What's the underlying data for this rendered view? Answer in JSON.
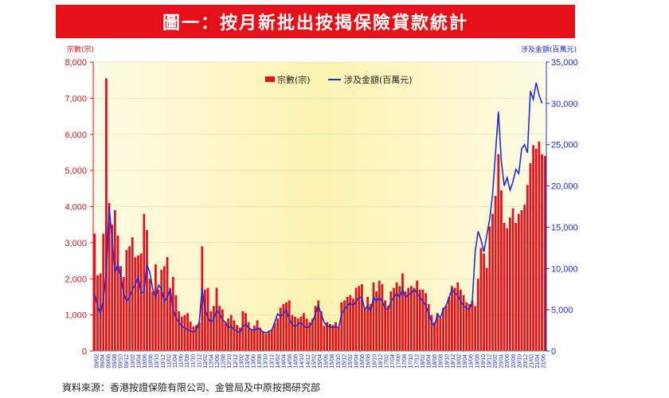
{
  "title": "圖一：按月新批出按揭保險貸款統計",
  "source": "資料來源：香港按證保險有限公司、金管局及中原按揭研究部",
  "colors": {
    "bar": "#e4111a",
    "line": "#1e2ed2",
    "title_bg": "#e4111a",
    "bg_center": "#fbf5b8"
  },
  "chart_data": {
    "type": "bar",
    "left_axis": {
      "label": "宗數(宗)",
      "range": [
        0,
        8000
      ],
      "ticks": [
        0,
        1000,
        2000,
        3000,
        4000,
        5000,
        6000,
        7000,
        8000
      ],
      "tick_labels": [
        "0",
        "1,000",
        "2,000",
        "3,000",
        "4,000",
        "5,000",
        "6,000",
        "7,000",
        "8,000"
      ]
    },
    "right_axis": {
      "label": "涉及金額(百萬元)",
      "range": [
        0,
        35000
      ],
      "ticks": [
        0,
        5000,
        10000,
        15000,
        20000,
        25000,
        30000,
        35000
      ],
      "tick_labels": [
        "0",
        "5,000",
        "10,000",
        "15,000",
        "20,000",
        "25,000",
        "30,000",
        "35,000"
      ]
    },
    "legend": {
      "position": "top-center",
      "bar_label": "宗數(宗)",
      "line_label": "涉及金額(百萬元)"
    },
    "x_labels": [
      "09/02",
      "09/04",
      "09/06",
      "09/08",
      "09/10",
      "09/12",
      "10/02",
      "10/04",
      "10/06",
      "10/08",
      "10/10",
      "10/12",
      "11/02",
      "11/04",
      "11/06",
      "11/08",
      "11/10",
      "11/12",
      "12/02",
      "12/04",
      "12/06",
      "12/08",
      "12/10",
      "12/12",
      "13/02",
      "13/04",
      "13/06",
      "13/08",
      "13/10",
      "13/12",
      "14/02",
      "14/04",
      "14/06",
      "14/08",
      "14/10",
      "14/12",
      "15/02",
      "15/04",
      "15/06",
      "15/08",
      "15/10",
      "15/12",
      "16/02",
      "16/04",
      "16/06",
      "16/08",
      "16/10",
      "16/12",
      "17/02",
      "17/04",
      "17/06",
      "17/08",
      "17/10",
      "17/12",
      "18/02",
      "18/04",
      "18/06",
      "18/08",
      "18/10",
      "18/12",
      "19/02",
      "19/04",
      "19/06",
      "19/08",
      "19/10",
      "19/12",
      "20/02",
      "20/04",
      "20/06",
      "20/08",
      "20/10",
      "20/12",
      "21/02",
      "21/04",
      "21/06"
    ],
    "series": [
      {
        "name": "宗數(宗)",
        "type": "bar",
        "values": [
          3250,
          2100,
          2150,
          3250,
          7550,
          4100,
          3500,
          3900,
          3200,
          2350,
          2050,
          2800,
          2900,
          3150,
          2600,
          2650,
          2700,
          3800,
          3350,
          2000,
          1650,
          2400,
          1700,
          2250,
          2350,
          2600,
          1750,
          2050,
          1550,
          1100,
          950,
          1000,
          1050,
          820,
          680,
          720,
          800,
          2900,
          1700,
          1750,
          1100,
          1250,
          1750,
          1250,
          1150,
          800,
          900,
          1000,
          850,
          720,
          650,
          1100,
          1050,
          800,
          600,
          700,
          850,
          650,
          550,
          480,
          550,
          600,
          780,
          900,
          1200,
          1300,
          1350,
          1400,
          1000,
          950,
          900,
          950,
          1050,
          900,
          800,
          900,
          1250,
          1400,
          1100,
          700,
          800,
          750,
          720,
          800,
          650,
          1350,
          1400,
          1500,
          1550,
          1450,
          1750,
          1800,
          1850,
          1200,
          1500,
          1300,
          1900,
          1650,
          1950,
          1850,
          1400,
          1250,
          1650,
          1750,
          1900,
          1800,
          2150,
          1650,
          1750,
          1800,
          1750,
          1950,
          1700,
          1700,
          1600,
          1300,
          1000,
          800,
          1050,
          900,
          1200,
          1250,
          1500,
          1800,
          1750,
          1900,
          1700,
          1550,
          1350,
          1300,
          1400,
          1250,
          2000,
          2850,
          2700,
          2300,
          3450,
          3800,
          4300,
          5450,
          4450,
          3550,
          3400,
          3700,
          3950,
          3550,
          3800,
          3900,
          4050,
          4600,
          5200,
          5700,
          5600,
          5800,
          5450,
          5400
        ]
      },
      {
        "name": "涉及金額(百萬元)",
        "type": "line",
        "values": [
          7000,
          5500,
          4500,
          6200,
          9500,
          17500,
          13500,
          9500,
          10500,
          9000,
          7000,
          6000,
          6500,
          7500,
          8000,
          9000,
          7000,
          7200,
          10500,
          9500,
          7500,
          6500,
          8000,
          7500,
          6000,
          6500,
          7500,
          5000,
          4000,
          3500,
          3000,
          2800,
          2600,
          2400,
          2300,
          2500,
          3500,
          7600,
          5000,
          4000,
          3500,
          3800,
          5000,
          4500,
          3800,
          3500,
          2800,
          3000,
          2600,
          2400,
          2200,
          3000,
          3200,
          2800,
          2600,
          2500,
          2800,
          2600,
          2300,
          2200,
          2400,
          2500,
          3500,
          4500,
          4200,
          4500,
          5000,
          3800,
          3200,
          3000,
          3200,
          3500,
          3000,
          2800,
          3000,
          3500,
          4500,
          5500,
          4500,
          3500,
          3000,
          3000,
          2800,
          3000,
          2800,
          4500,
          5000,
          5500,
          5800,
          5500,
          6000,
          6500,
          6500,
          5000,
          5500,
          4800,
          6500,
          6000,
          6500,
          6000,
          5200,
          5000,
          6000,
          6500,
          7000,
          6500,
          7500,
          6500,
          6800,
          7000,
          7500,
          7000,
          6500,
          6000,
          5500,
          4500,
          3500,
          3000,
          4500,
          4000,
          5000,
          5500,
          6500,
          7500,
          7000,
          6800,
          6000,
          5500,
          5200,
          5000,
          6000,
          12000,
          14500,
          13500,
          12000,
          14000,
          16000,
          19000,
          24000,
          29000,
          23000,
          20000,
          21000,
          19500,
          20500,
          22000,
          21500,
          24500,
          25000,
          24000,
          31500,
          30500,
          32500,
          31000,
          30000
        ]
      }
    ]
  }
}
